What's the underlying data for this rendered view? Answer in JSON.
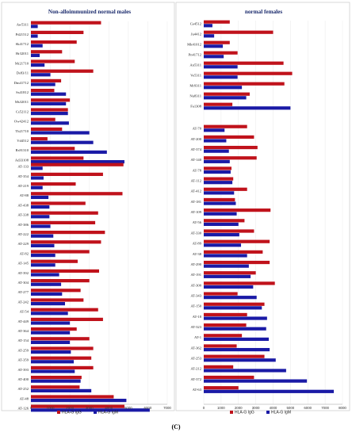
{
  "figure_label": "(C)",
  "colors": {
    "igg": "#c0121b",
    "igm": "#1a1aa6"
  },
  "chart_data": [
    {
      "type": "bar",
      "orientation": "horizontal",
      "title": "Non-alloimmunized normal males",
      "xlim": [
        0,
        7000
      ],
      "xticks": [
        0,
        1000,
        2000,
        3000,
        4000,
        5000,
        6000,
        7000
      ],
      "legend": {
        "placement": "bottom-center",
        "entries": [
          "HLA-G IgG",
          "HLA-G IgM"
        ]
      },
      "grid": true,
      "series_names": [
        "HLA-G IgG",
        "HLA-G IgM"
      ],
      "groups": [
        {
          "rows": [
            {
              "label": "Aw5311",
              "igg": 3600,
              "igm": 350
            },
            {
              "label": "Pd21512",
              "igg": 2700,
              "igm": 350
            },
            {
              "label": "Sk41712",
              "igg": 2350,
              "igm": 600
            },
            {
              "label": "Hr32011",
              "igg": 1600,
              "igm": 450
            },
            {
              "label": "Mr21710",
              "igg": 2250,
              "igm": 700
            },
            {
              "label": "Ds83/11",
              "igg": 3200,
              "igm": 1000
            },
            {
              "label": "Dm41712",
              "igg": 1550,
              "igm": 1250
            },
            {
              "label": "Ss41812",
              "igg": 1200,
              "igm": 1800
            },
            {
              "label": "Ms32011",
              "igg": 2000,
              "igm": 1800
            },
            {
              "label": "Cs52112",
              "igg": 1900,
              "igm": 1900
            },
            {
              "label": "Ow42412",
              "igg": 1250,
              "igm": 1950
            },
            {
              "label": "Tb21710",
              "igg": 1600,
              "igm": 3000
            },
            {
              "label": "Vd4512",
              "igg": 850,
              "igm": 3200
            },
            {
              "label": "Rs91310",
              "igg": 2250,
              "igm": 3900
            },
            {
              "label": "Ad33108",
              "igg": 2700,
              "igm": 4800
            }
          ]
        },
        {
          "rows": [
            {
              "label": "AT-133",
              "igg": 4750,
              "igm": 600
            },
            {
              "label": "AT-354",
              "igg": 3700,
              "igm": 650
            },
            {
              "label": "AT-219",
              "igg": 2300,
              "igm": 600
            },
            {
              "label": "AT-88",
              "igg": 4700,
              "igm": 900
            },
            {
              "label": "AT-438",
              "igg": 2800,
              "igm": 950
            },
            {
              "label": "AT-338",
              "igg": 3450,
              "igm": 950
            },
            {
              "label": "AT-386",
              "igg": 3300,
              "igm": 1000
            },
            {
              "label": "AT-222",
              "igg": 3800,
              "igm": 1150
            },
            {
              "label": "AT-229",
              "igg": 3600,
              "igm": 1200
            },
            {
              "label": "AT-82",
              "igg": 3000,
              "igm": 1250
            },
            {
              "label": "AT-145",
              "igg": 2400,
              "igm": 1250
            },
            {
              "label": "AT-392",
              "igg": 3500,
              "igm": 1450
            },
            {
              "label": "AT-304",
              "igg": 3000,
              "igm": 1550
            },
            {
              "label": "AT-277",
              "igg": 2550,
              "igm": 1600
            },
            {
              "label": "AT-242",
              "igg": 2700,
              "igm": 1750
            },
            {
              "label": "AT-54",
              "igg": 3450,
              "igm": 1900
            },
            {
              "label": "AT-449",
              "igg": 3700,
              "igm": 2000
            },
            {
              "label": "AT-364",
              "igg": 2350,
              "igm": 2000
            },
            {
              "label": "AT-154",
              "igg": 3000,
              "igm": 2000
            },
            {
              "label": "AT-259",
              "igg": 3200,
              "igm": 2050
            },
            {
              "label": "AT-359",
              "igg": 3100,
              "igm": 2200
            },
            {
              "label": "AT-393",
              "igg": 3200,
              "igm": 2250
            },
            {
              "label": "AT-400",
              "igg": 2600,
              "igm": 2550
            },
            {
              "label": "AT-252",
              "igg": 2500,
              "igm": 3100
            },
            {
              "label": "AT-48",
              "igg": 4250,
              "igm": 4900
            },
            {
              "label": "AT-126",
              "igg": 4800,
              "igm": 6100
            }
          ]
        }
      ]
    },
    {
      "type": "bar",
      "orientation": "horizontal",
      "title": "normal females",
      "xlim": [
        0,
        8000
      ],
      "xticks": [
        0,
        1000,
        2000,
        3000,
        4000,
        5000,
        6000,
        7000,
        8000
      ],
      "legend": {
        "placement": "bottom-center",
        "entries": [
          "HLA-G IgG",
          "HLA-G IgM"
        ]
      },
      "grid": true,
      "series_names": [
        "HLA-G IgG",
        "HLA-G IgM"
      ],
      "groups": [
        {
          "rows": [
            {
              "label": "Ce4512",
              "igg": 1500,
              "igm": 500
            },
            {
              "label": "Ju4412",
              "igg": 4000,
              "igm": 600
            },
            {
              "label": "Mk41012",
              "igg": 1500,
              "igm": 1100
            },
            {
              "label": "Pn41712",
              "igg": 1950,
              "igm": 1150
            },
            {
              "label": "An5311",
              "igg": 4600,
              "igm": 1950
            },
            {
              "label": "Ve5311",
              "igg": 5100,
              "igm": 1950
            },
            {
              "label": "Mr9311",
              "igg": 4650,
              "igm": 2200
            },
            {
              "label": "Nu8311",
              "igg": 2650,
              "igm": 2450
            },
            {
              "label": "Fa1308",
              "igg": 1650,
              "igm": 5000
            }
          ]
        },
        {
          "rows": [
            {
              "label": "AT-70",
              "igg": 2500,
              "igm": 1200
            },
            {
              "label": "AT-200",
              "igg": 2900,
              "igm": 1300
            },
            {
              "label": "AT-374",
              "igg": 3100,
              "igm": 1450
            },
            {
              "label": "AT-140",
              "igg": 3050,
              "igm": 1500
            },
            {
              "label": "AT-78",
              "igg": 1600,
              "igm": 1550
            },
            {
              "label": "AT-112",
              "igg": 1700,
              "igm": 1650
            },
            {
              "label": "AT-412",
              "igg": 2500,
              "igm": 1750
            },
            {
              "label": "AT-181",
              "igg": 1800,
              "igm": 1850
            },
            {
              "label": "AT-109",
              "igg": 3850,
              "igm": 1900
            },
            {
              "label": "AT-56",
              "igg": 2350,
              "igm": 2000
            },
            {
              "label": "AT-330",
              "igg": 2900,
              "igm": 2050
            },
            {
              "label": "AT-89",
              "igg": 3800,
              "igm": 2150
            },
            {
              "label": "AT-38",
              "igg": 3400,
              "igm": 2500
            },
            {
              "label": "AT-290",
              "igg": 3800,
              "igm": 2600
            },
            {
              "label": "AT-191",
              "igg": 3000,
              "igm": 2700
            },
            {
              "label": "AT-300",
              "igg": 4100,
              "igm": 2850
            },
            {
              "label": "AT-343",
              "igg": 1950,
              "igm": 3050
            },
            {
              "label": "AT-150",
              "igg": 3500,
              "igm": 3350
            },
            {
              "label": "AT-18",
              "igg": 2500,
              "igm": 3650
            },
            {
              "label": "AT-323",
              "igg": 2450,
              "igm": 3600
            },
            {
              "label": "AT-1",
              "igg": 2200,
              "igm": 3750
            },
            {
              "label": "AT-362",
              "igg": 1900,
              "igm": 3800
            },
            {
              "label": "AT-253",
              "igg": 3500,
              "igm": 4150
            },
            {
              "label": "AT-212",
              "igg": 1700,
              "igm": 4750
            },
            {
              "label": "AT-372",
              "igg": 2900,
              "igm": 5950
            },
            {
              "label": "AT-63",
              "igg": 2000,
              "igm": 7500
            }
          ]
        }
      ]
    }
  ]
}
